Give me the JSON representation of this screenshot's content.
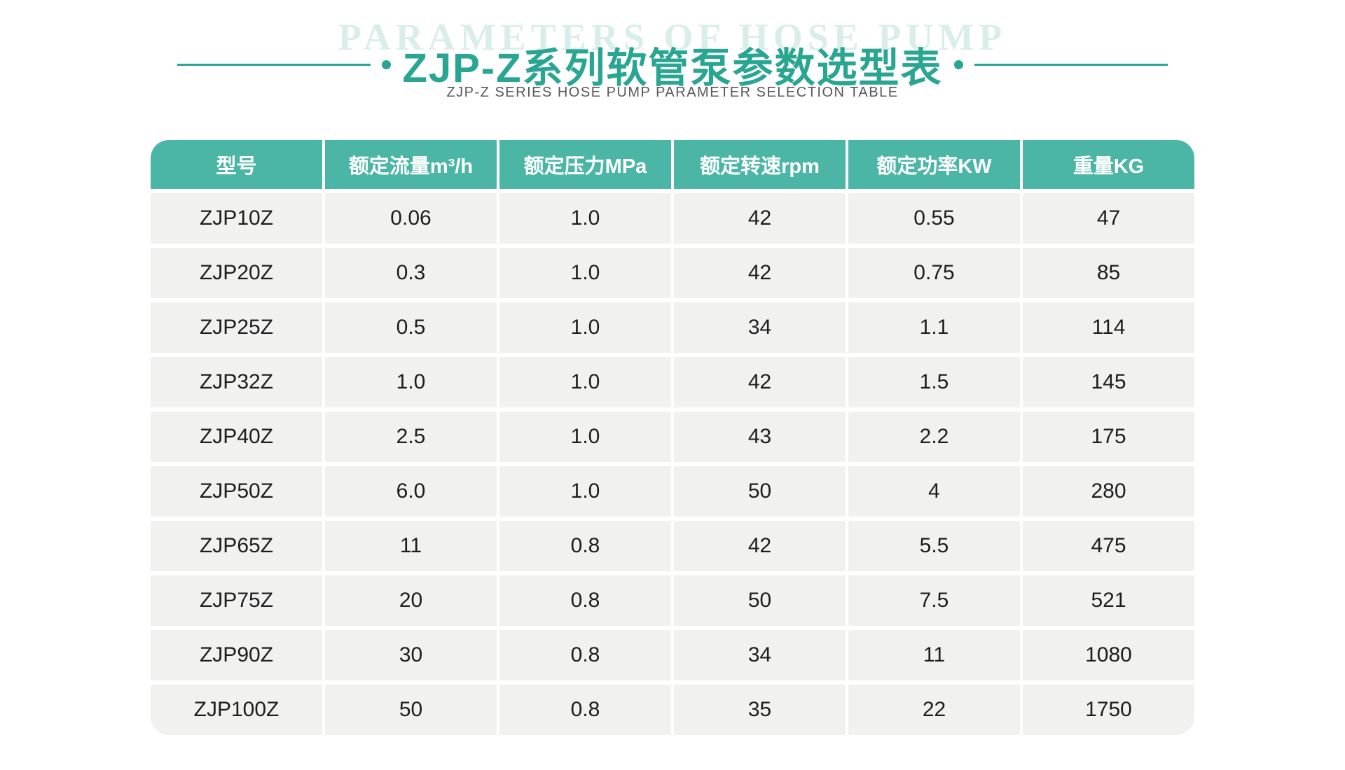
{
  "page": {
    "watermark": "PARAMETERS OF HOSE PUMP",
    "title": "ZJP-Z系列软管泵参数选型表",
    "subtitle": "ZJP-Z SERIES HOSE PUMP PARAMETER SELECTION TABLE"
  },
  "colors": {
    "accent_teal": "#29a692",
    "header_bg": "#4cb6a6",
    "header_text": "#ffffff",
    "row_bg": "#f1f1f0",
    "cell_text": "#1d1d1f",
    "watermark_text": "#d9eeea",
    "subtitle_text": "#58585a",
    "page_bg": "#ffffff"
  },
  "table": {
    "columns": [
      "型号",
      "额定流量m³/h",
      "额定压力MPa",
      "额定转速rpm",
      "额定功率KW",
      "重量KG"
    ],
    "rows": [
      [
        "ZJP10Z",
        "0.06",
        "1.0",
        "42",
        "0.55",
        "47"
      ],
      [
        "ZJP20Z",
        "0.3",
        "1.0",
        "42",
        "0.75",
        "85"
      ],
      [
        "ZJP25Z",
        "0.5",
        "1.0",
        "34",
        "1.1",
        "114"
      ],
      [
        "ZJP32Z",
        "1.0",
        "1.0",
        "42",
        "1.5",
        "145"
      ],
      [
        "ZJP40Z",
        "2.5",
        "1.0",
        "43",
        "2.2",
        "175"
      ],
      [
        "ZJP50Z",
        "6.0",
        "1.0",
        "50",
        "4",
        "280"
      ],
      [
        "ZJP65Z",
        "11",
        "0.8",
        "42",
        "5.5",
        "475"
      ],
      [
        "ZJP75Z",
        "20",
        "0.8",
        "50",
        "7.5",
        "521"
      ],
      [
        "ZJP90Z",
        "30",
        "0.8",
        "34",
        "11",
        "1080"
      ],
      [
        "ZJP100Z",
        "50",
        "0.8",
        "35",
        "22",
        "1750"
      ]
    ]
  }
}
